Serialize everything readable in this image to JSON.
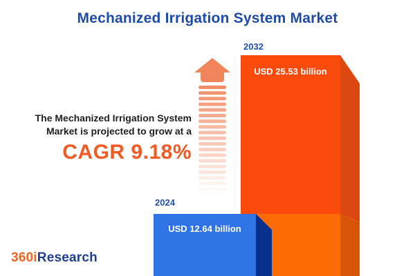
{
  "title": "Mechanized Irrigation System Market",
  "statement": {
    "line1": "The Mechanized Irrigation System",
    "line2": "Market is projected to grow at a",
    "cagr": "CAGR 9.18%"
  },
  "bars": {
    "b2024": {
      "year": "2024",
      "value_label": "USD 12.64 billion"
    },
    "b2032": {
      "year": "2032",
      "value_label": "USD 25.53 billion"
    }
  },
  "logo": {
    "part1": "360i",
    "part2": "Research"
  },
  "arrow": {
    "dash_count": 19,
    "dash_color": "#EF8257",
    "head_color": "#F0845B"
  },
  "colors": {
    "title_blue": "#1D4BA8",
    "year_blue": "#2150A8",
    "statement_dark": "#1E1E1E",
    "cagr_orange": "#F15A22",
    "orange_front": "#FB4B0C",
    "orange_front_light": "#FB6B06",
    "orange_side": "#DD4710",
    "orange_side_light": "#D85507",
    "blue_front": "#2F73E7",
    "blue_side": "#063089",
    "logo_orange": "#F26522",
    "logo_blue": "#1E3E94"
  },
  "chart_data": {
    "type": "bar",
    "categories": [
      "2024",
      "2032"
    ],
    "values": [
      12.64,
      25.53
    ],
    "unit": "USD billion",
    "bar_labels": [
      "USD 12.64 billion",
      "USD 25.53 billion"
    ],
    "bar_colors": [
      "#2F73E7",
      "#FB4B0C"
    ],
    "title": "Mechanized Irrigation System Market",
    "annotations": [
      "The Mechanized Irrigation System Market is projected to grow at a CAGR 9.18%"
    ],
    "cagr_percent": 9.18,
    "xlabel": "",
    "ylabel": "",
    "legend": false,
    "axes_visible": false,
    "grid": false
  }
}
